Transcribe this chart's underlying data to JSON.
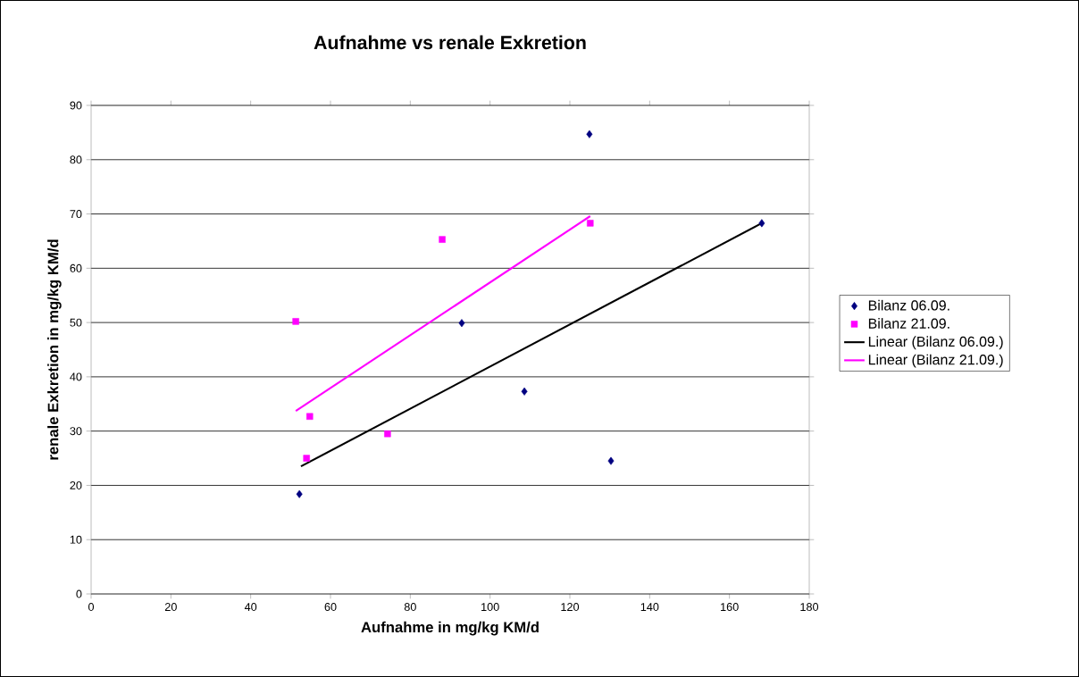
{
  "chart_data": {
    "type": "scatter",
    "title": "Aufnahme vs renale Exkretion",
    "xlabel": "Aufnahme in mg/kg KM/d",
    "ylabel": "renale Exkretion in mg/kg KM/d",
    "xlim": [
      0,
      180
    ],
    "ylim": [
      0,
      90
    ],
    "xticks": [
      0,
      20,
      40,
      60,
      80,
      100,
      120,
      140,
      160,
      180
    ],
    "yticks": [
      0,
      10,
      20,
      30,
      40,
      50,
      60,
      70,
      80,
      90
    ],
    "grid": "y",
    "legend": "right",
    "series": [
      {
        "name": "Bilanz 06.09.",
        "marker": "diamond",
        "color": "#000080",
        "x": [
          52.2,
          124.9,
          92.9,
          108.6,
          130.3,
          168.1
        ],
        "values": [
          18.4,
          84.7,
          49.9,
          37.3,
          24.5,
          68.3
        ]
      },
      {
        "name": "Bilanz 21.09.",
        "marker": "square",
        "color": "#ff00ff",
        "x": [
          51.3,
          54.8,
          54.0,
          74.3,
          88.0,
          125.1
        ],
        "values": [
          50.2,
          32.7,
          25.0,
          29.5,
          65.3,
          68.3
        ]
      },
      {
        "name": "Linear (Bilanz 06.09.)",
        "type": "line",
        "marker": "none",
        "color": "#000000",
        "x": [
          52.6,
          168.1
        ],
        "values": [
          23.5,
          68.3
        ]
      },
      {
        "name": "Linear (Bilanz 21.09.)",
        "type": "line",
        "marker": "none",
        "color": "#ff00ff",
        "x": [
          51.3,
          125.1
        ],
        "values": [
          33.7,
          69.6
        ]
      }
    ]
  }
}
